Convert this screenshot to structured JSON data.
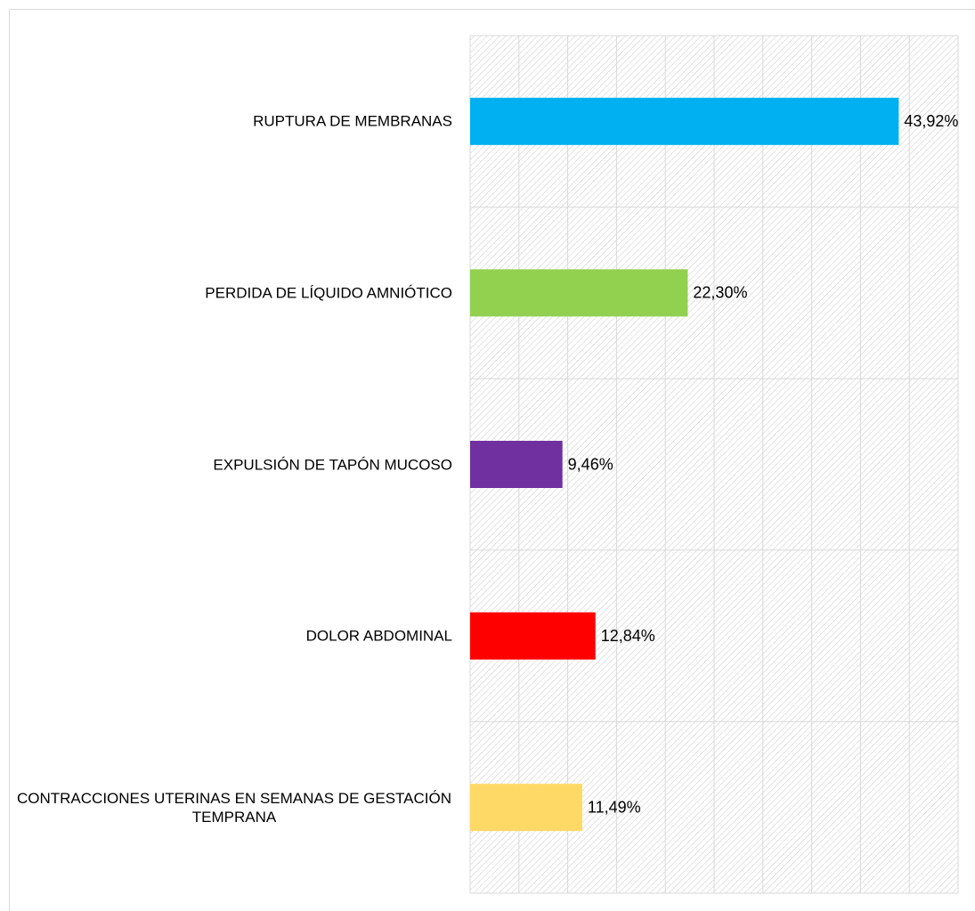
{
  "chart_data": {
    "type": "bar",
    "orientation": "horizontal",
    "categories": [
      "RUPTURA DE MEMBRANAS",
      "PERDIDA DE LÍQUIDO AMNIÓTICO",
      "EXPULSIÓN DE TAPÓN MUCOSO",
      "DOLOR ABDOMINAL",
      "CONTRACCIONES UTERINAS EN SEMANAS DE GESTACIÓN TEMPRANA"
    ],
    "values": [
      43.92,
      22.3,
      9.46,
      12.84,
      11.49
    ],
    "value_labels": [
      "43,92%",
      "22,30%",
      "9,46%",
      "12,84%",
      "11,49%"
    ],
    "colors": [
      "#00b0f0",
      "#92d050",
      "#7030a0",
      "#ff0000",
      "#ffd966"
    ],
    "xlim": [
      0,
      50
    ],
    "xticks": [
      0,
      5,
      10,
      15,
      20,
      25,
      30,
      35,
      40,
      45,
      50
    ],
    "grid": true
  }
}
